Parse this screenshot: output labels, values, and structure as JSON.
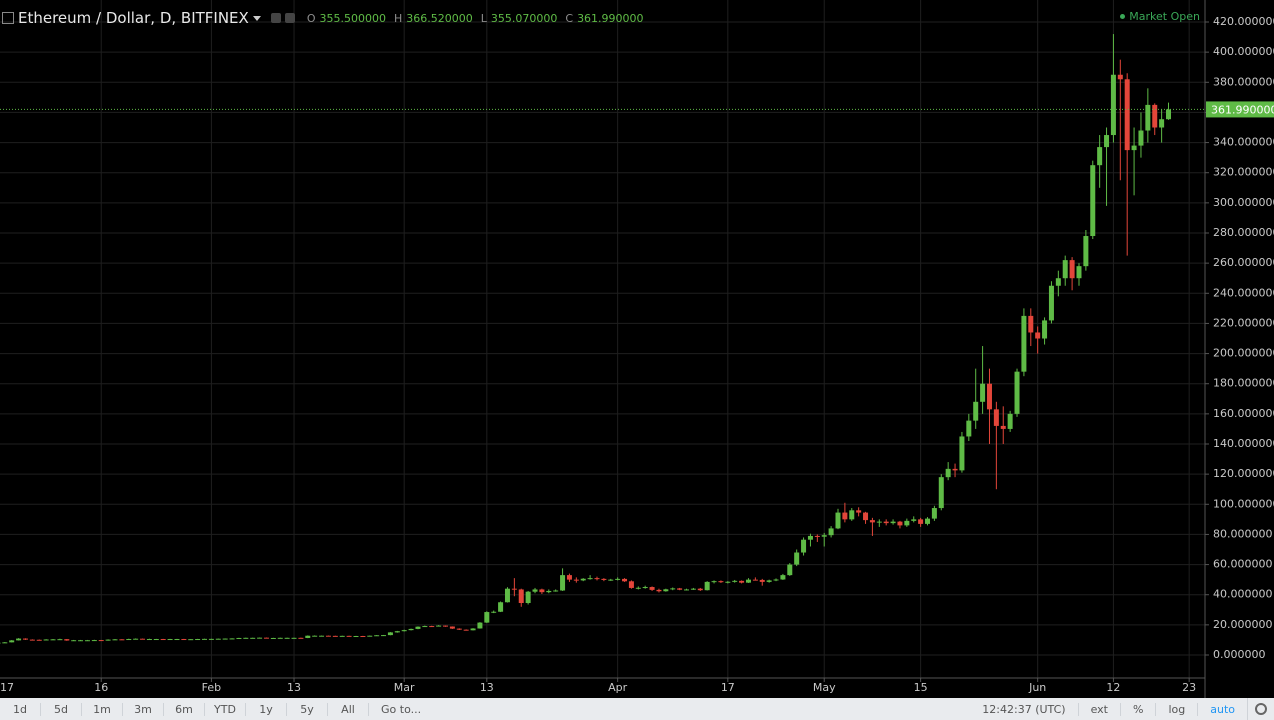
{
  "chart_data": {
    "type": "candlestick",
    "title": "Ethereum / Dollar, D, BITFINEX",
    "legend": [
      [
        "O",
        "355.500000"
      ],
      [
        "H",
        "366.520000"
      ],
      [
        "L",
        "355.070000"
      ],
      [
        "C",
        "361.990000"
      ]
    ],
    "status": "Market Open",
    "up_color": "#5fbb46",
    "down_color": "#e3463a",
    "grid": true,
    "xlim": [
      0.3,
      175.3
    ],
    "xticks": [
      {
        "value": 0,
        "label": "17"
      },
      {
        "value": 15,
        "label": "16"
      },
      {
        "value": 31,
        "label": "Feb"
      },
      {
        "value": 43,
        "label": "13"
      },
      {
        "value": 59,
        "label": "Mar"
      },
      {
        "value": 71,
        "label": "13"
      },
      {
        "value": 90,
        "label": "Apr"
      },
      {
        "value": 106,
        "label": "17"
      },
      {
        "value": 120,
        "label": "May"
      },
      {
        "value": 134,
        "label": "15"
      },
      {
        "value": 151,
        "label": "Jun"
      },
      {
        "value": 162,
        "label": "12"
      },
      {
        "value": 173,
        "label": "23"
      }
    ],
    "ylim": [
      -15.26,
      434.6
    ],
    "yticks": [
      {
        "value": 0,
        "label": "0.000000"
      },
      {
        "value": 20,
        "label": "20.000000"
      },
      {
        "value": 40,
        "label": "40.000000"
      },
      {
        "value": 60,
        "label": "60.000000"
      },
      {
        "value": 80,
        "label": "80.000000"
      },
      {
        "value": 100,
        "label": "100.000000"
      },
      {
        "value": 120,
        "label": "120.000000"
      },
      {
        "value": 140,
        "label": "140.000000"
      },
      {
        "value": 160,
        "label": "160.000000"
      },
      {
        "value": 180,
        "label": "180.000000"
      },
      {
        "value": 200,
        "label": "200.000000"
      },
      {
        "value": 220,
        "label": "220.000000"
      },
      {
        "value": 240,
        "label": "240.000000"
      },
      {
        "value": 260,
        "label": "260.000000"
      },
      {
        "value": 280,
        "label": "280.000000"
      },
      {
        "value": 300,
        "label": "300.000000"
      },
      {
        "value": 320,
        "label": "320.000000"
      },
      {
        "value": 340,
        "label": "340.000000"
      },
      {
        "value": 360,
        "label": "360.000000"
      },
      {
        "value": 380,
        "label": "380.000000"
      },
      {
        "value": 400,
        "label": "400.000000"
      },
      {
        "value": 420,
        "label": "420.000000"
      }
    ],
    "last_price": {
      "value": 361.99,
      "label": "361.990000"
    },
    "x": [
      0,
      1,
      2,
      3,
      4,
      5,
      6,
      7,
      8,
      9,
      10,
      11,
      12,
      13,
      14,
      15,
      16,
      17,
      18,
      19,
      20,
      21,
      22,
      23,
      24,
      25,
      26,
      27,
      28,
      29,
      30,
      31,
      32,
      33,
      34,
      35,
      36,
      37,
      38,
      39,
      40,
      41,
      42,
      43,
      44,
      45,
      46,
      47,
      48,
      49,
      50,
      51,
      52,
      53,
      54,
      55,
      56,
      57,
      58,
      59,
      60,
      61,
      62,
      63,
      64,
      65,
      66,
      67,
      68,
      69,
      70,
      71,
      72,
      73,
      74,
      75,
      76,
      77,
      78,
      79,
      80,
      81,
      82,
      83,
      84,
      85,
      86,
      87,
      88,
      89,
      90,
      91,
      92,
      93,
      94,
      95,
      96,
      97,
      98,
      99,
      100,
      101,
      102,
      103,
      104,
      105,
      106,
      107,
      108,
      109,
      110,
      111,
      112,
      113,
      114,
      115,
      116,
      117,
      118,
      119,
      120,
      121,
      122,
      123,
      124,
      125,
      126,
      127,
      128,
      129,
      130,
      131,
      132,
      133,
      134,
      135,
      136,
      137,
      138,
      139,
      140,
      141,
      142,
      143,
      144,
      145,
      146,
      147,
      148,
      149,
      150,
      151,
      152,
      153,
      154,
      155,
      156,
      157,
      158,
      159,
      160,
      161,
      162,
      163,
      164,
      165,
      166,
      167,
      168,
      169,
      170
    ],
    "ohlc": [
      [
        7.9,
        8.4,
        7.8,
        8.2
      ],
      [
        8.2,
        8.6,
        8.1,
        8.4
      ],
      [
        8.4,
        9.9,
        8.3,
        9.7
      ],
      [
        9.7,
        11.2,
        9.6,
        10.9
      ],
      [
        10.9,
        11.1,
        10.0,
        10.2
      ],
      [
        10.2,
        10.4,
        9.8,
        10.1
      ],
      [
        10.1,
        10.3,
        9.7,
        9.9
      ],
      [
        9.9,
        10.5,
        9.8,
        10.3
      ],
      [
        10.3,
        10.6,
        10.1,
        10.4
      ],
      [
        10.4,
        10.8,
        10.3,
        10.5
      ],
      [
        10.5,
        10.6,
        9.4,
        9.6
      ],
      [
        9.6,
        10.0,
        9.5,
        9.8
      ],
      [
        9.8,
        10.0,
        9.6,
        9.8
      ],
      [
        9.8,
        10.0,
        9.7,
        9.8
      ],
      [
        9.8,
        10.1,
        9.7,
        9.9
      ],
      [
        9.9,
        10.0,
        9.5,
        9.6
      ],
      [
        9.6,
        10.4,
        9.5,
        10.2
      ],
      [
        10.2,
        10.6,
        10.1,
        10.4
      ],
      [
        10.4,
        10.5,
        10.1,
        10.3
      ],
      [
        10.3,
        10.8,
        10.2,
        10.6
      ],
      [
        10.6,
        11.0,
        10.5,
        10.8
      ],
      [
        10.8,
        10.9,
        10.5,
        10.6
      ],
      [
        10.6,
        10.8,
        10.5,
        10.6
      ],
      [
        10.6,
        10.7,
        10.5,
        10.6
      ],
      [
        10.6,
        10.7,
        10.4,
        10.5
      ],
      [
        10.5,
        10.7,
        10.4,
        10.6
      ],
      [
        10.6,
        10.7,
        10.5,
        10.6
      ],
      [
        10.6,
        10.7,
        10.4,
        10.5
      ],
      [
        10.5,
        10.6,
        10.4,
        10.5
      ],
      [
        10.5,
        10.7,
        10.4,
        10.6
      ],
      [
        10.6,
        10.8,
        10.5,
        10.7
      ],
      [
        10.7,
        10.8,
        10.6,
        10.7
      ],
      [
        10.7,
        10.9,
        10.6,
        10.8
      ],
      [
        10.8,
        11.0,
        10.7,
        10.9
      ],
      [
        10.9,
        11.1,
        10.8,
        11.0
      ],
      [
        11.0,
        11.4,
        10.9,
        11.3
      ],
      [
        11.3,
        11.5,
        11.2,
        11.4
      ],
      [
        11.4,
        11.5,
        11.3,
        11.4
      ],
      [
        11.4,
        11.6,
        11.3,
        11.5
      ],
      [
        11.5,
        11.6,
        11.0,
        11.1
      ],
      [
        11.1,
        11.4,
        11.0,
        11.3
      ],
      [
        11.3,
        11.5,
        11.2,
        11.4
      ],
      [
        11.4,
        11.5,
        11.3,
        11.4
      ],
      [
        11.4,
        11.5,
        11.3,
        11.4
      ],
      [
        11.4,
        11.5,
        11.2,
        11.3
      ],
      [
        11.3,
        13.0,
        11.2,
        12.8
      ],
      [
        12.8,
        13.0,
        12.6,
        12.8
      ],
      [
        12.8,
        12.9,
        12.6,
        12.8
      ],
      [
        12.8,
        12.9,
        12.5,
        12.7
      ],
      [
        12.7,
        12.8,
        12.5,
        12.6
      ],
      [
        12.6,
        12.8,
        12.5,
        12.7
      ],
      [
        12.7,
        12.8,
        12.5,
        12.6
      ],
      [
        12.6,
        12.7,
        12.5,
        12.6
      ],
      [
        12.6,
        12.7,
        12.3,
        12.4
      ],
      [
        12.4,
        12.9,
        12.3,
        12.8
      ],
      [
        12.8,
        13.2,
        12.7,
        13.1
      ],
      [
        13.1,
        13.3,
        13.0,
        13.2
      ],
      [
        13.2,
        15.2,
        13.1,
        15.0
      ],
      [
        15.0,
        16.0,
        14.8,
        15.8
      ],
      [
        15.8,
        16.8,
        15.6,
        16.5
      ],
      [
        16.5,
        17.5,
        16.3,
        17.3
      ],
      [
        17.3,
        19.0,
        17.1,
        18.8
      ],
      [
        18.8,
        19.5,
        18.6,
        19.2
      ],
      [
        19.2,
        19.4,
        18.9,
        19.1
      ],
      [
        19.1,
        19.8,
        19.0,
        19.5
      ],
      [
        19.5,
        19.6,
        18.7,
        18.9
      ],
      [
        18.9,
        19.0,
        17.3,
        17.5
      ],
      [
        17.5,
        17.7,
        16.6,
        16.8
      ],
      [
        16.8,
        17.0,
        16.2,
        16.4
      ],
      [
        16.4,
        17.8,
        16.3,
        17.6
      ],
      [
        17.6,
        21.8,
        17.5,
        21.5
      ],
      [
        21.5,
        29.0,
        21.3,
        28.5
      ],
      [
        28.5,
        29.5,
        27.8,
        28.7
      ],
      [
        28.7,
        35.5,
        28.5,
        35.0
      ],
      [
        35.0,
        45.0,
        34.8,
        44.0
      ],
      [
        44.0,
        51.0,
        39.0,
        43.5
      ],
      [
        43.5,
        44.0,
        32.0,
        34.5
      ],
      [
        34.5,
        42.5,
        33.5,
        42.0
      ],
      [
        42.0,
        44.5,
        41.0,
        43.5
      ],
      [
        43.5,
        44.0,
        40.5,
        41.7
      ],
      [
        41.7,
        43.5,
        41.0,
        42.5
      ],
      [
        42.5,
        43.5,
        42.0,
        42.8
      ],
      [
        42.8,
        57.5,
        42.5,
        53.0
      ],
      [
        53.0,
        54.0,
        48.5,
        50.0
      ],
      [
        50.0,
        51.5,
        48.0,
        49.5
      ],
      [
        49.5,
        51.0,
        49.0,
        50.6
      ],
      [
        50.6,
        53.0,
        50.0,
        51.0
      ],
      [
        51.0,
        52.0,
        49.5,
        50.5
      ],
      [
        50.5,
        51.0,
        49.0,
        49.8
      ],
      [
        49.8,
        50.5,
        49.2,
        50.0
      ],
      [
        50.0,
        51.5,
        49.5,
        50.5
      ],
      [
        50.5,
        51.0,
        48.5,
        48.9
      ],
      [
        48.9,
        49.5,
        44.0,
        44.5
      ],
      [
        44.5,
        45.5,
        43.5,
        44.6
      ],
      [
        44.6,
        46.0,
        44.0,
        45.1
      ],
      [
        45.1,
        45.5,
        42.5,
        43.2
      ],
      [
        43.2,
        44.0,
        41.5,
        42.3
      ],
      [
        42.3,
        44.0,
        42.0,
        43.6
      ],
      [
        43.6,
        44.8,
        43.0,
        44.2
      ],
      [
        44.2,
        44.5,
        43.0,
        43.3
      ],
      [
        43.3,
        44.0,
        42.8,
        43.5
      ],
      [
        43.5,
        44.5,
        43.2,
        44.0
      ],
      [
        44.0,
        44.5,
        42.5,
        43.0
      ],
      [
        43.0,
        49.0,
        42.8,
        48.5
      ],
      [
        48.5,
        49.5,
        47.5,
        49.0
      ],
      [
        49.0,
        49.5,
        47.8,
        48.3
      ],
      [
        48.3,
        49.0,
        47.5,
        48.6
      ],
      [
        48.6,
        49.8,
        48.0,
        49.2
      ],
      [
        49.2,
        49.5,
        47.5,
        48.0
      ],
      [
        48.0,
        51.0,
        47.8,
        50.0
      ],
      [
        50.0,
        51.5,
        49.5,
        49.8
      ],
      [
        49.8,
        50.5,
        46.0,
        48.5
      ],
      [
        48.5,
        50.0,
        48.0,
        49.5
      ],
      [
        49.5,
        50.8,
        49.0,
        50.1
      ],
      [
        50.1,
        53.8,
        49.8,
        53.0
      ],
      [
        53.0,
        61.0,
        52.5,
        60.0
      ],
      [
        60.0,
        70.0,
        59.0,
        68.0
      ],
      [
        68.0,
        78.0,
        66.0,
        76.5
      ],
      [
        76.5,
        80.5,
        72.0,
        79.0
      ],
      [
        79.0,
        80.0,
        75.0,
        78.5
      ],
      [
        78.5,
        81.0,
        72.0,
        79.5
      ],
      [
        79.5,
        85.5,
        78.0,
        84.0
      ],
      [
        84.0,
        97.0,
        83.5,
        94.5
      ],
      [
        94.5,
        101.0,
        88.0,
        90.0
      ],
      [
        90.0,
        97.5,
        89.0,
        96.0
      ],
      [
        96.0,
        98.0,
        92.0,
        94.5
      ],
      [
        94.5,
        95.0,
        87.0,
        89.5
      ],
      [
        89.5,
        91.0,
        79.0,
        88.0
      ],
      [
        88.0,
        90.0,
        85.0,
        88.5
      ],
      [
        88.5,
        90.0,
        86.0,
        87.5
      ],
      [
        87.5,
        90.0,
        86.5,
        88.5
      ],
      [
        88.5,
        89.0,
        84.0,
        86.0
      ],
      [
        86.0,
        90.5,
        85.0,
        89.0
      ],
      [
        89.0,
        92.0,
        88.0,
        90.0
      ],
      [
        90.0,
        91.0,
        85.0,
        87.0
      ],
      [
        87.0,
        91.5,
        86.0,
        90.5
      ],
      [
        90.5,
        99.0,
        89.0,
        97.5
      ],
      [
        97.5,
        120.0,
        96.0,
        118.0
      ],
      [
        118.0,
        128.0,
        116.0,
        123.5
      ],
      [
        123.5,
        127.0,
        118.0,
        122.5
      ],
      [
        122.5,
        148.0,
        121.0,
        145.0
      ],
      [
        145.0,
        160.0,
        142.0,
        155.5
      ],
      [
        155.5,
        190.0,
        150.0,
        168.0
      ],
      [
        168.0,
        205.0,
        160.0,
        180.0
      ],
      [
        180.0,
        190.0,
        140.0,
        163.0
      ],
      [
        163.0,
        168.0,
        110.0,
        152.0
      ],
      [
        152.0,
        165.0,
        140.0,
        150.0
      ],
      [
        150.0,
        162.0,
        148.0,
        160.0
      ],
      [
        160.0,
        190.0,
        158.0,
        188.0
      ],
      [
        188.0,
        230.0,
        185.0,
        225.0
      ],
      [
        225.0,
        230.0,
        205.0,
        214.0
      ],
      [
        214.0,
        218.0,
        200.0,
        210.0
      ],
      [
        210.0,
        224.0,
        206.0,
        222.0
      ],
      [
        222.0,
        248.0,
        220.0,
        245.0
      ],
      [
        245.0,
        255.0,
        238.0,
        250.0
      ],
      [
        250.0,
        265.0,
        245.0,
        262.0
      ],
      [
        262.0,
        264.0,
        242.0,
        250.0
      ],
      [
        250.0,
        260.0,
        245.0,
        258.0
      ],
      [
        258.0,
        282.0,
        255.0,
        278.0
      ],
      [
        278.0,
        328.0,
        276.0,
        325.0
      ],
      [
        325.0,
        345.0,
        310.0,
        337.0
      ],
      [
        337.0,
        350.0,
        298.0,
        345.0
      ],
      [
        345.0,
        412.0,
        340.0,
        385.0
      ],
      [
        385.0,
        395.0,
        315.0,
        382.0
      ],
      [
        382.0,
        386.0,
        265.0,
        335.0
      ],
      [
        335.0,
        350.0,
        305.0,
        338.0
      ],
      [
        338.0,
        360.0,
        330.0,
        348.0
      ],
      [
        348.0,
        376.0,
        340.0,
        365.0
      ],
      [
        365.0,
        366.0,
        345.0,
        350.0
      ],
      [
        350.0,
        362.0,
        340.0,
        355.5
      ],
      [
        355.5,
        366.52,
        355.07,
        361.99
      ]
    ]
  },
  "toolbar": {
    "ranges": [
      "1d",
      "5d",
      "1m",
      "3m",
      "6m",
      "YTD",
      "1y",
      "5y",
      "All"
    ],
    "goto": "Go to...",
    "clock": "12:42:37 (UTC)",
    "options": [
      "ext",
      "%",
      "log",
      "auto"
    ]
  }
}
